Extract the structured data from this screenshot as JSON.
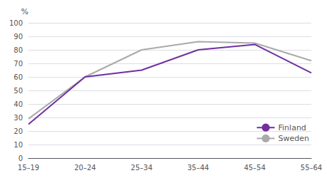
{
  "chart_data": {
    "type": "line",
    "ylabel": "%",
    "categories": [
      "15–19",
      "20–24",
      "25–34",
      "35–44",
      "45–54",
      "55–64"
    ],
    "series": [
      {
        "name": "Finland",
        "color": "#7030a0",
        "values": [
          25,
          60,
          65,
          80,
          84,
          63
        ]
      },
      {
        "name": "Sweden",
        "color": "#aaaaaa",
        "values": [
          29,
          60,
          80,
          86,
          85,
          72
        ]
      }
    ],
    "ylim": [
      0,
      100
    ],
    "yticks": [
      0,
      10,
      20,
      30,
      40,
      50,
      60,
      70,
      80,
      90,
      100
    ],
    "grid": true,
    "legend": "lower right"
  }
}
